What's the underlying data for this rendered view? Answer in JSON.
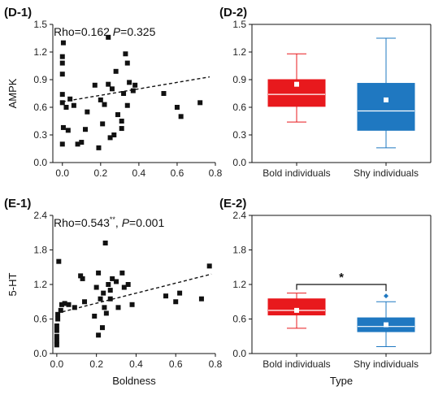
{
  "chart_data": [
    {
      "id": "D-1",
      "type": "scatter",
      "panel_label": "(D-1)",
      "ylabel": "AMPK",
      "xlabel": "",
      "xlim": [
        -0.05,
        0.8
      ],
      "ylim": [
        0,
        1.5
      ],
      "xticks": [
        "0.0",
        "0.2",
        "0.4",
        "0.6",
        "0.8"
      ],
      "yticks": [
        "0.0",
        "0.3",
        "0.6",
        "0.9",
        "1.2",
        "1.5"
      ],
      "annotation": {
        "rho_prefix": "Rho=0.162 ",
        "p_label": "P",
        "p_suffix": "=0.325"
      },
      "trendline": {
        "x": [
          0.0,
          0.77
        ],
        "y": [
          0.66,
          0.93
        ]
      },
      "points": [
        {
          "x": 0.005,
          "y": 1.3
        },
        {
          "x": 0.0,
          "y": 1.15
        },
        {
          "x": 0.0,
          "y": 1.08
        },
        {
          "x": 0.0,
          "y": 0.96
        },
        {
          "x": 0.0,
          "y": 0.74
        },
        {
          "x": 0.0,
          "y": 0.65
        },
        {
          "x": 0.005,
          "y": 0.38
        },
        {
          "x": 0.0,
          "y": 0.2
        },
        {
          "x": 0.02,
          "y": 0.6
        },
        {
          "x": 0.03,
          "y": 0.35
        },
        {
          "x": 0.04,
          "y": 0.69
        },
        {
          "x": 0.06,
          "y": 0.62
        },
        {
          "x": 0.08,
          "y": 0.2
        },
        {
          "x": 0.1,
          "y": 0.22
        },
        {
          "x": 0.12,
          "y": 0.36
        },
        {
          "x": 0.13,
          "y": 0.55
        },
        {
          "x": 0.17,
          "y": 0.84
        },
        {
          "x": 0.19,
          "y": 0.16
        },
        {
          "x": 0.2,
          "y": 0.68
        },
        {
          "x": 0.21,
          "y": 0.42
        },
        {
          "x": 0.22,
          "y": 0.63
        },
        {
          "x": 0.24,
          "y": 1.36
        },
        {
          "x": 0.24,
          "y": 0.85
        },
        {
          "x": 0.26,
          "y": 0.8
        },
        {
          "x": 0.25,
          "y": 0.27
        },
        {
          "x": 0.27,
          "y": 0.3
        },
        {
          "x": 0.28,
          "y": 0.99
        },
        {
          "x": 0.29,
          "y": 0.52
        },
        {
          "x": 0.31,
          "y": 0.45
        },
        {
          "x": 0.31,
          "y": 0.37
        },
        {
          "x": 0.32,
          "y": 0.75
        },
        {
          "x": 0.33,
          "y": 1.18
        },
        {
          "x": 0.34,
          "y": 1.08
        },
        {
          "x": 0.34,
          "y": 0.62
        },
        {
          "x": 0.35,
          "y": 0.87
        },
        {
          "x": 0.37,
          "y": 0.78
        },
        {
          "x": 0.38,
          "y": 0.84
        },
        {
          "x": 0.53,
          "y": 0.75
        },
        {
          "x": 0.6,
          "y": 0.6
        },
        {
          "x": 0.62,
          "y": 0.5
        },
        {
          "x": 0.72,
          "y": 0.65
        }
      ]
    },
    {
      "id": "D-2",
      "type": "box",
      "panel_label": "(D-2)",
      "ylim": [
        0,
        1.5
      ],
      "yticks": [
        "0.0",
        "0.3",
        "0.6",
        "0.9",
        "1.2",
        "1.5"
      ],
      "xlabel": "",
      "categories": [
        "Bold individuals",
        "Shy individuals"
      ],
      "boxes": [
        {
          "name": "Bold individuals",
          "color": "#e8191d",
          "whisker_low": 0.44,
          "q1": 0.61,
          "median": 0.74,
          "q3": 0.9,
          "whisker_high": 1.18,
          "mean": 0.85
        },
        {
          "name": "Shy individuals",
          "color": "#1f78c1",
          "whisker_low": 0.16,
          "q1": 0.35,
          "median": 0.56,
          "q3": 0.86,
          "whisker_high": 1.35,
          "mean": 0.68
        }
      ]
    },
    {
      "id": "E-1",
      "type": "scatter",
      "panel_label": "(E-1)",
      "ylabel": "5-HT",
      "xlabel": "Boldness",
      "xlim": [
        -0.02,
        0.8
      ],
      "ylim": [
        0,
        2.4
      ],
      "xticks": [
        "0.0",
        "0.2",
        "0.4",
        "0.6",
        "0.8"
      ],
      "yticks": [
        "0.0",
        "0.6",
        "1.2",
        "1.8",
        "2.4"
      ],
      "annotation": {
        "rho_prefix": "Rho=0.543",
        "superscript": "**",
        "p_label": "P",
        "p_suffix": "=0.001"
      },
      "trendline": {
        "x": [
          0.0,
          0.78
        ],
        "y": [
          0.7,
          1.38
        ]
      },
      "points": [
        {
          "x": 0.0,
          "y": 0.15
        },
        {
          "x": 0.0,
          "y": 0.22
        },
        {
          "x": 0.0,
          "y": 0.3
        },
        {
          "x": 0.0,
          "y": 0.4
        },
        {
          "x": 0.0,
          "y": 0.48
        },
        {
          "x": 0.005,
          "y": 0.6
        },
        {
          "x": 0.005,
          "y": 0.68
        },
        {
          "x": 0.01,
          "y": 1.6
        },
        {
          "x": 0.02,
          "y": 0.75
        },
        {
          "x": 0.025,
          "y": 0.85
        },
        {
          "x": 0.04,
          "y": 0.87
        },
        {
          "x": 0.06,
          "y": 0.85
        },
        {
          "x": 0.09,
          "y": 0.8
        },
        {
          "x": 0.12,
          "y": 1.35
        },
        {
          "x": 0.13,
          "y": 1.3
        },
        {
          "x": 0.14,
          "y": 0.9
        },
        {
          "x": 0.19,
          "y": 0.65
        },
        {
          "x": 0.2,
          "y": 1.15
        },
        {
          "x": 0.21,
          "y": 0.32
        },
        {
          "x": 0.21,
          "y": 1.4
        },
        {
          "x": 0.22,
          "y": 0.95
        },
        {
          "x": 0.23,
          "y": 0.45
        },
        {
          "x": 0.235,
          "y": 1.05
        },
        {
          "x": 0.24,
          "y": 0.8
        },
        {
          "x": 0.245,
          "y": 1.92
        },
        {
          "x": 0.25,
          "y": 0.7
        },
        {
          "x": 0.26,
          "y": 1.2
        },
        {
          "x": 0.27,
          "y": 1.1
        },
        {
          "x": 0.27,
          "y": 0.95
        },
        {
          "x": 0.28,
          "y": 1.3
        },
        {
          "x": 0.3,
          "y": 1.25
        },
        {
          "x": 0.31,
          "y": 0.8
        },
        {
          "x": 0.33,
          "y": 1.4
        },
        {
          "x": 0.34,
          "y": 1.15
        },
        {
          "x": 0.36,
          "y": 1.2
        },
        {
          "x": 0.38,
          "y": 0.85
        },
        {
          "x": 0.55,
          "y": 1.0
        },
        {
          "x": 0.6,
          "y": 0.9
        },
        {
          "x": 0.62,
          "y": 1.05
        },
        {
          "x": 0.73,
          "y": 0.95
        },
        {
          "x": 0.77,
          "y": 1.52
        }
      ]
    },
    {
      "id": "E-2",
      "type": "box",
      "panel_label": "(E-2)",
      "ylim": [
        0,
        2.4
      ],
      "yticks": [
        "0.0",
        "0.6",
        "1.2",
        "1.8",
        "2.4"
      ],
      "xlabel": "Type",
      "categories": [
        "Bold individuals",
        "Shy individuals"
      ],
      "significance": "*",
      "boxes": [
        {
          "name": "Bold individuals",
          "color": "#e8191d",
          "whisker_low": 0.44,
          "q1": 0.67,
          "median": 0.75,
          "q3": 0.95,
          "whisker_high": 1.05,
          "mean": 0.75
        },
        {
          "name": "Shy individuals",
          "color": "#1f78c1",
          "whisker_low": 0.12,
          "q1": 0.38,
          "median": 0.47,
          "q3": 0.62,
          "whisker_high": 0.9,
          "mean": 0.5,
          "outlier": 1.0
        }
      ]
    }
  ]
}
